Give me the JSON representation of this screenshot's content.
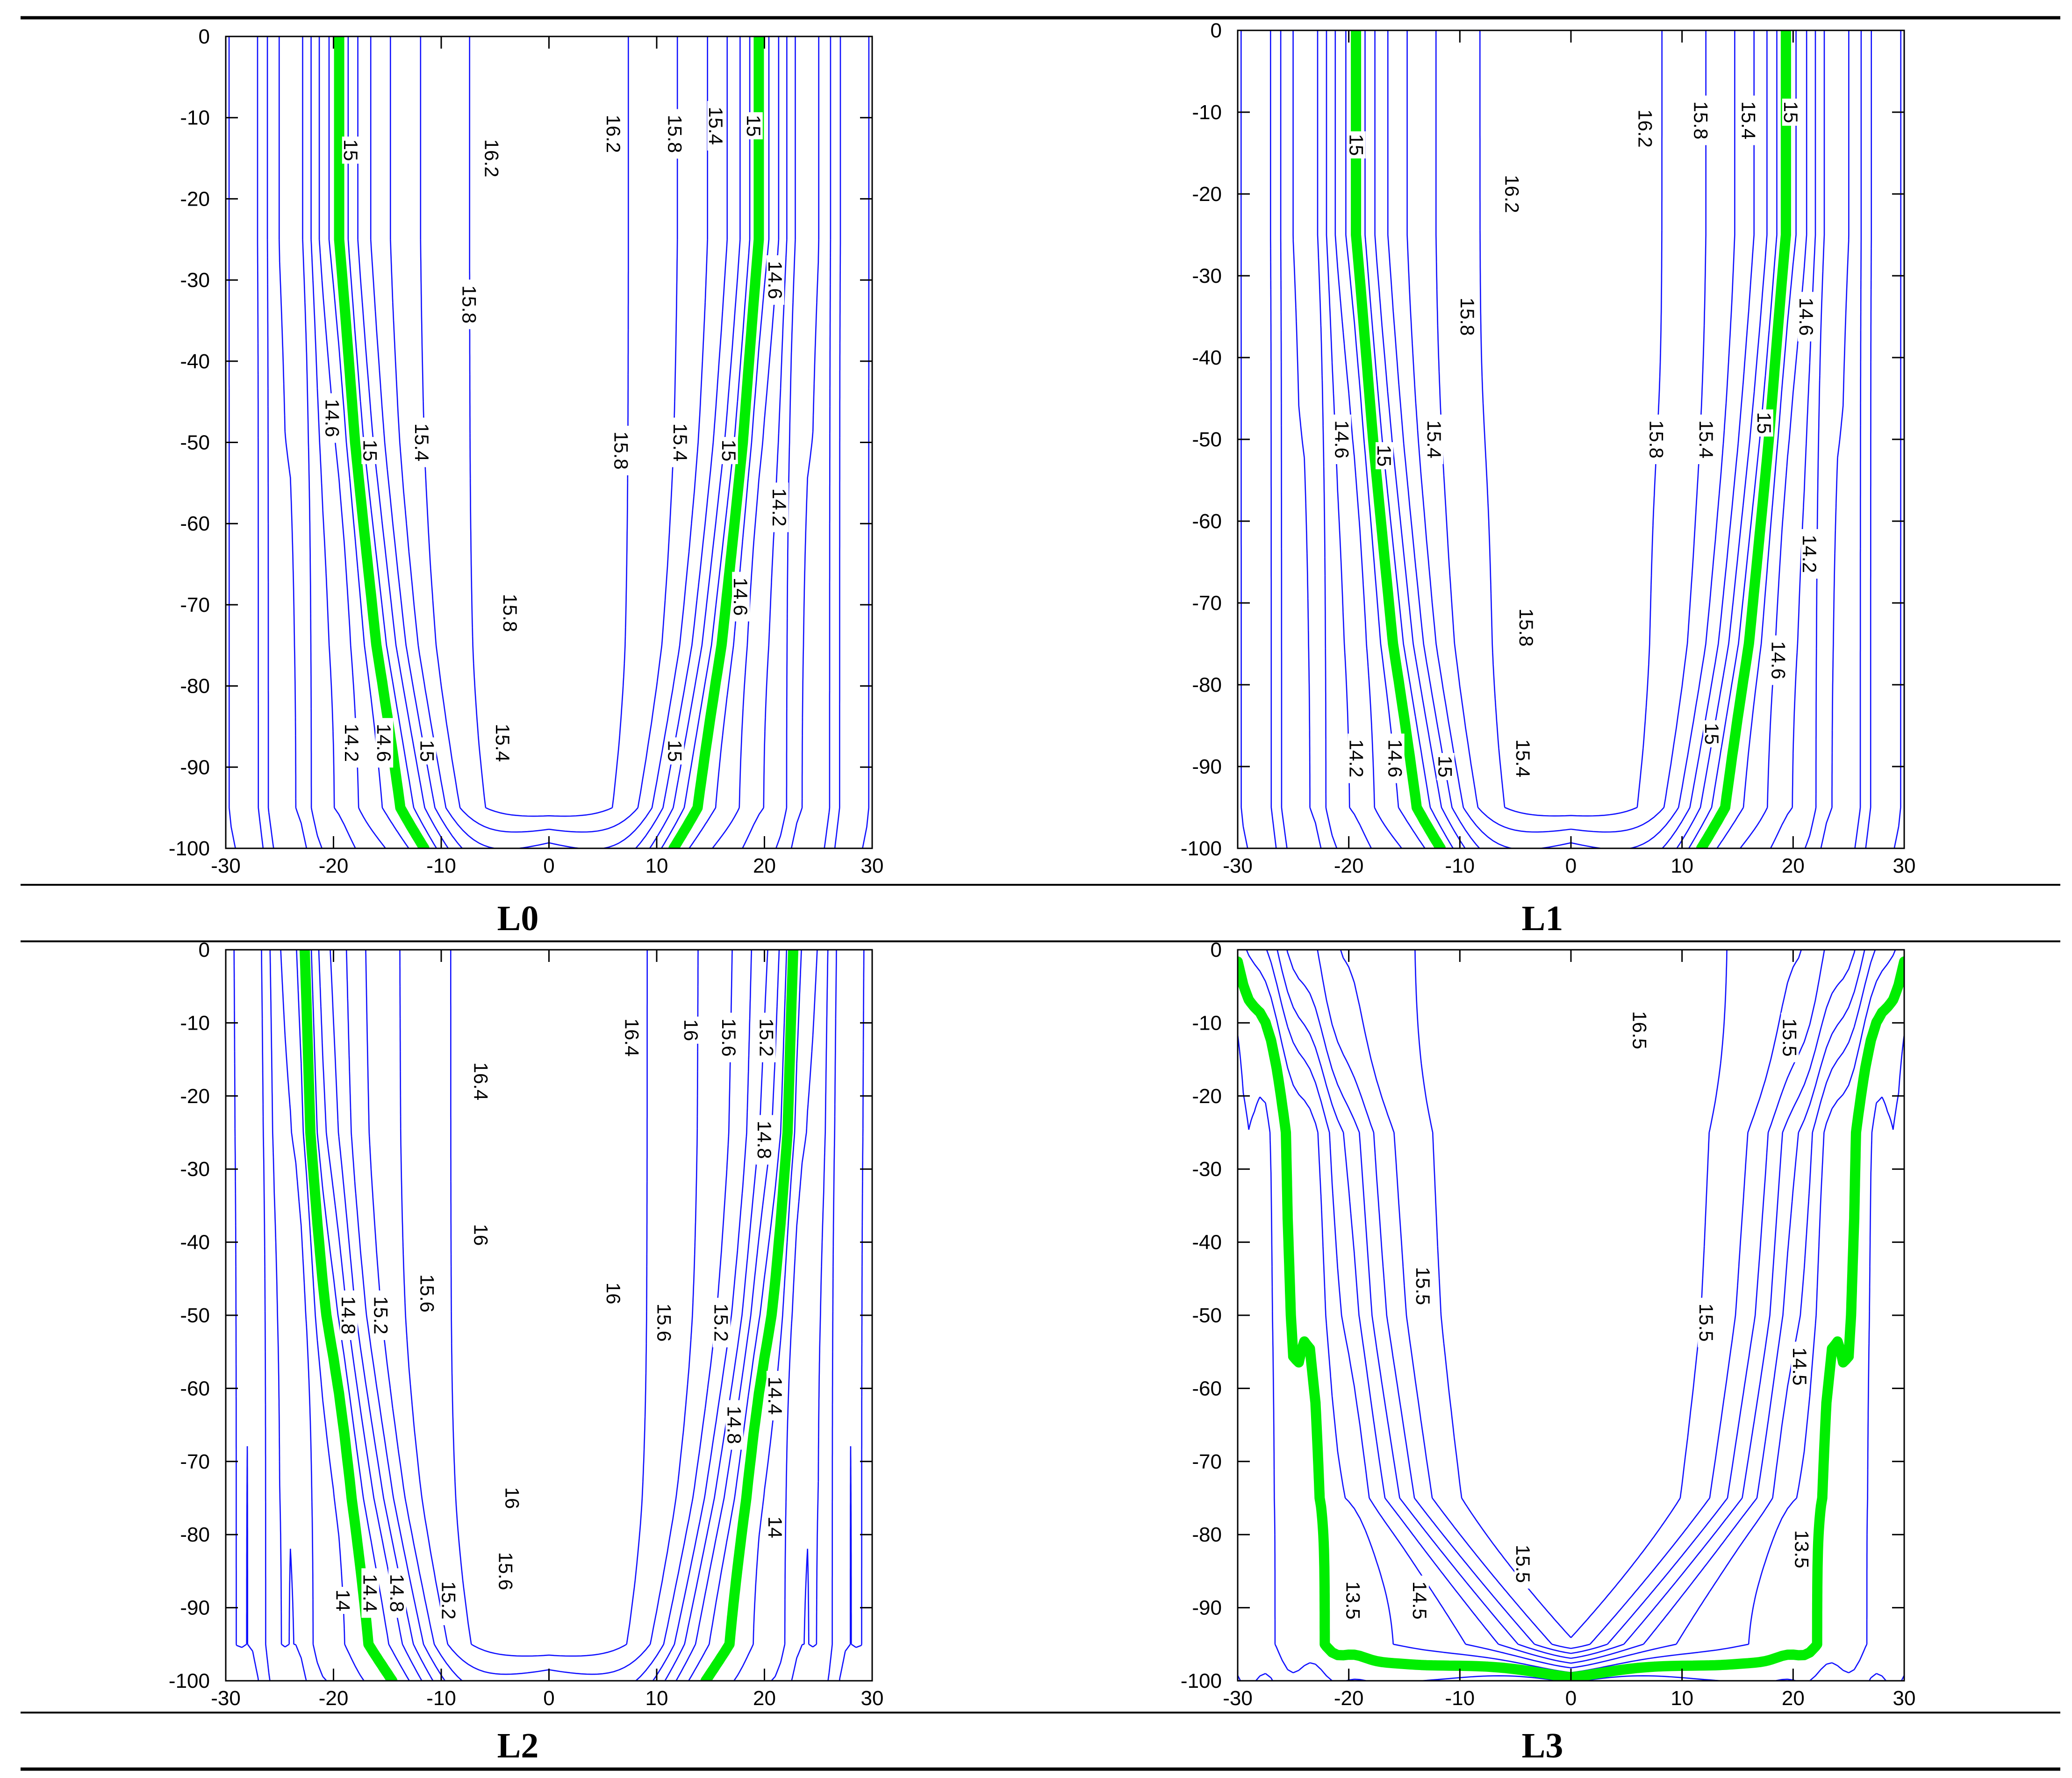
{
  "chart_data": [
    {
      "type": "contour",
      "title": "L0",
      "xlim": [
        -30,
        30
      ],
      "ylim": [
        -100,
        0
      ],
      "xticks": [
        -30,
        -20,
        -10,
        0,
        10,
        20,
        30
      ],
      "yticks": [
        0,
        -10,
        -20,
        -30,
        -40,
        -50,
        -60,
        -70,
        -80,
        -90,
        -100
      ],
      "highlight_level": 15,
      "highlight_color": "#00ee00",
      "contour_color": "#1010ff",
      "labels": [
        {
          "text": "15",
          "x": -18.6,
          "y": -14
        },
        {
          "text": "16.2",
          "x": -5.5,
          "y": -15
        },
        {
          "text": "16.2",
          "x": 5.8,
          "y": -12
        },
        {
          "text": "15.8",
          "x": 11.5,
          "y": -12
        },
        {
          "text": "15.4",
          "x": 15.3,
          "y": -11
        },
        {
          "text": "15",
          "x": 18.8,
          "y": -11
        },
        {
          "text": "15.8",
          "x": -7.6,
          "y": -33
        },
        {
          "text": "14.6",
          "x": 20.8,
          "y": -30
        },
        {
          "text": "14.6",
          "x": -20.3,
          "y": -47
        },
        {
          "text": "15",
          "x": -16.8,
          "y": -51
        },
        {
          "text": "15.4",
          "x": -12,
          "y": -50
        },
        {
          "text": "15.8",
          "x": 6.5,
          "y": -51
        },
        {
          "text": "15.4",
          "x": 12,
          "y": -50
        },
        {
          "text": "15",
          "x": 16.5,
          "y": -51
        },
        {
          "text": "14.2",
          "x": 21.2,
          "y": -58
        },
        {
          "text": "15.8",
          "x": -3.8,
          "y": -71
        },
        {
          "text": "14.6",
          "x": 17.6,
          "y": -69
        },
        {
          "text": "14.2",
          "x": -18.5,
          "y": -87
        },
        {
          "text": "14.6",
          "x": -15.5,
          "y": -87
        },
        {
          "text": "15",
          "x": -11.5,
          "y": -88
        },
        {
          "text": "15.4",
          "x": -4.5,
          "y": -87
        },
        {
          "text": "15",
          "x": 11.5,
          "y": -88
        }
      ]
    },
    {
      "type": "contour",
      "title": "L1",
      "xlim": [
        -30,
        30
      ],
      "ylim": [
        -100,
        0
      ],
      "xticks": [
        -30,
        -20,
        -10,
        0,
        10,
        20,
        30
      ],
      "yticks": [
        0,
        -10,
        -20,
        -30,
        -40,
        -50,
        -60,
        -70,
        -80,
        -90,
        -100
      ],
      "highlight_level": 15,
      "highlight_color": "#00ee00",
      "contour_color": "#1010ff",
      "labels": [
        {
          "text": "15",
          "x": -19.5,
          "y": -14
        },
        {
          "text": "16.2",
          "x": 6.5,
          "y": -12
        },
        {
          "text": "15.8",
          "x": 11.5,
          "y": -11
        },
        {
          "text": "15.4",
          "x": 15.8,
          "y": -11
        },
        {
          "text": "15",
          "x": 19.6,
          "y": -10
        },
        {
          "text": "16.2",
          "x": -5.5,
          "y": -20
        },
        {
          "text": "15.8",
          "x": -9.5,
          "y": -35
        },
        {
          "text": "14.6",
          "x": 21,
          "y": -35
        },
        {
          "text": "14.6",
          "x": -20.8,
          "y": -50
        },
        {
          "text": "15",
          "x": -17,
          "y": -52
        },
        {
          "text": "15.4",
          "x": -12.5,
          "y": -50
        },
        {
          "text": "15.8",
          "x": 7.5,
          "y": -50
        },
        {
          "text": "15.4",
          "x": 12,
          "y": -50
        },
        {
          "text": "15",
          "x": 17.2,
          "y": -48
        },
        {
          "text": "14.2",
          "x": 21.3,
          "y": -64
        },
        {
          "text": "15.8",
          "x": -4.2,
          "y": -73
        },
        {
          "text": "14.6",
          "x": 18.5,
          "y": -77
        },
        {
          "text": "14.2",
          "x": -19.5,
          "y": -89
        },
        {
          "text": "14.6",
          "x": -16,
          "y": -89
        },
        {
          "text": "15",
          "x": -11.5,
          "y": -90
        },
        {
          "text": "15.4",
          "x": -4.5,
          "y": -89
        },
        {
          "text": "15",
          "x": 12.5,
          "y": -86
        }
      ]
    },
    {
      "type": "contour",
      "title": "L2",
      "xlim": [
        -30,
        30
      ],
      "ylim": [
        -100,
        0
      ],
      "xticks": [
        -30,
        -20,
        -10,
        0,
        10,
        20,
        30
      ],
      "yticks": [
        0,
        -10,
        -20,
        -30,
        -40,
        -50,
        -60,
        -70,
        -80,
        -90,
        -100
      ],
      "highlight_level": 15,
      "highlight_color": "#00ee00",
      "contour_color": "#1010ff",
      "labels": [
        {
          "text": "16.4",
          "x": 7.5,
          "y": -12
        },
        {
          "text": "16",
          "x": 13,
          "y": -11
        },
        {
          "text": "15.6",
          "x": 16.5,
          "y": -12
        },
        {
          "text": "15.2",
          "x": 20,
          "y": -12
        },
        {
          "text": "16.4",
          "x": -6.5,
          "y": -18
        },
        {
          "text": "14.8",
          "x": 19.8,
          "y": -26
        },
        {
          "text": "16",
          "x": -6.5,
          "y": -39
        },
        {
          "text": "16",
          "x": 5.8,
          "y": -47
        },
        {
          "text": "14.8",
          "x": -18.8,
          "y": -50
        },
        {
          "text": "15.2",
          "x": -15.8,
          "y": -50
        },
        {
          "text": "15.6",
          "x": -11.5,
          "y": -47
        },
        {
          "text": "15.6",
          "x": 10.5,
          "y": -51
        },
        {
          "text": "15.2",
          "x": 15.8,
          "y": -51
        },
        {
          "text": "14.4",
          "x": 20.8,
          "y": -61
        },
        {
          "text": "14.8",
          "x": 17,
          "y": -65
        },
        {
          "text": "16",
          "x": -3.6,
          "y": -75
        },
        {
          "text": "14",
          "x": 20.8,
          "y": -79
        },
        {
          "text": "15.6",
          "x": -4.2,
          "y": -85
        },
        {
          "text": "14",
          "x": -19.3,
          "y": -89
        },
        {
          "text": "14.4",
          "x": -16.8,
          "y": -88
        },
        {
          "text": "14.8",
          "x": -14.3,
          "y": -88
        },
        {
          "text": "15.2",
          "x": -9.5,
          "y": -89
        }
      ]
    },
    {
      "type": "contour",
      "title": "L3",
      "xlim": [
        -30,
        30
      ],
      "ylim": [
        -100,
        0
      ],
      "xticks": [
        -30,
        -20,
        -10,
        0,
        10,
        20,
        30
      ],
      "yticks": [
        0,
        -10,
        -20,
        -30,
        -40,
        -50,
        -60,
        -70,
        -80,
        -90,
        -100
      ],
      "highlight_level": 15,
      "highlight_color": "#00ee00",
      "contour_color": "#1010ff",
      "labels": [
        {
          "text": "16.5",
          "x": 6,
          "y": -11
        },
        {
          "text": "15.5",
          "x": 19.5,
          "y": -12
        },
        {
          "text": "15.5",
          "x": -13.5,
          "y": -46
        },
        {
          "text": "15.5",
          "x": 12,
          "y": -51
        },
        {
          "text": "14.5",
          "x": 20.4,
          "y": -57
        },
        {
          "text": "15.5",
          "x": -4.5,
          "y": -84
        },
        {
          "text": "13.5",
          "x": 20.6,
          "y": -82
        },
        {
          "text": "13.5",
          "x": -19.8,
          "y": -89
        },
        {
          "text": "14.5",
          "x": -13.8,
          "y": -89
        }
      ]
    }
  ]
}
